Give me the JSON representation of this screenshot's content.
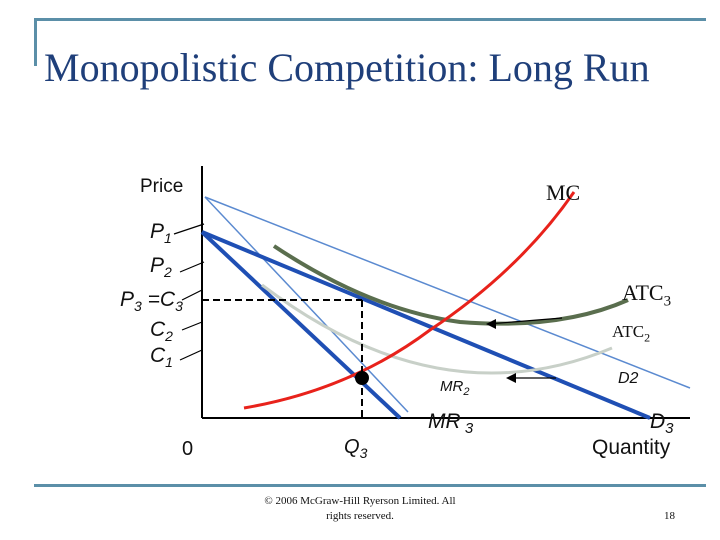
{
  "title": "Monopolistic Competition: Long Run",
  "axes": {
    "y_label": "Price",
    "x_label": "Quantity",
    "origin": "0"
  },
  "price_labels": {
    "p1": "P",
    "p1_sub": "1",
    "p2": "P",
    "p2_sub": "2",
    "p3_c3": "P",
    "p3_sub": "3",
    "p3_eq": " =C",
    "c3_sub": "3",
    "c2": "C",
    "c2_sub": "2",
    "c1": "C",
    "c1_sub": "1"
  },
  "quantity_label": {
    "q": "Q",
    "q_sub": "3"
  },
  "curves": {
    "mc": "MC",
    "atc3": "ATC",
    "atc3_sub": "3",
    "atc2": "ATC",
    "atc2_sub": "2",
    "mr2": "MR",
    "mr2_sub": "2",
    "mr3": "MR",
    "mr3_sub": " 3",
    "d2": "D2",
    "d3": "D",
    "d3_sub": "3"
  },
  "colors": {
    "mc": "#e8221b",
    "atc3": "#5a6e4e",
    "atc2": "#c8d0c8",
    "demand": "#1f4fb4",
    "light_blue": "#5b8ad0",
    "frame": "#5b8fa8"
  },
  "footer": {
    "copyright_line1": "© 2006 McGraw-Hill Ryerson Limited.  All",
    "copyright_line2": "rights reserved.",
    "page_number": "18"
  }
}
